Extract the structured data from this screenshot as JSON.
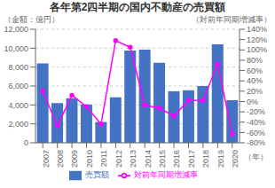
{
  "chart_data": {
    "type": "bar",
    "title": "各年第2四半期の国内不動産の売買額",
    "ylabel": "（金額：億円）",
    "y2label": "（対前年同期増減率）",
    "xlabel": "（年）",
    "categories": [
      "2007",
      "2008",
      "2009",
      "2010",
      "2011",
      "2012",
      "2013",
      "2014",
      "2015",
      "2016",
      "2017",
      "2018",
      "2019",
      "2020"
    ],
    "series": [
      {
        "name": "売買額",
        "type": "bar",
        "color": "#4472C4",
        "values": [
          8400,
          4200,
          4700,
          4050,
          2200,
          4800,
          9750,
          9850,
          8450,
          5450,
          5550,
          6000,
          10400,
          4500
        ]
      },
      {
        "name": "対前年同期増減率",
        "type": "line",
        "axis": "y2",
        "color": "#FF00FF",
        "marker": "circle",
        "values": [
          0.2,
          -0.47,
          0.12,
          -0.1,
          -0.44,
          1.18,
          1.05,
          -0.07,
          -0.13,
          -0.28,
          0.02,
          0.02,
          0.73,
          -0.63
        ]
      }
    ],
    "ylim": [
      0,
      12000
    ],
    "yticks": [
      0,
      {
        "value": 2000,
        "label": "2,000"
      },
      {
        "value": 4000,
        "label": "4,000"
      },
      {
        "value": 6000,
        "label": "6,000"
      },
      {
        "value": 8000,
        "label": "8,000"
      },
      {
        "value": 10000,
        "label": "10,000"
      },
      {
        "value": 12000,
        "label": "12,000"
      }
    ],
    "y2lim": [
      -0.8,
      1.4
    ],
    "y2ticks": [
      {
        "value": -0.8,
        "label": "-80%"
      },
      {
        "value": -0.6,
        "label": "-60%"
      },
      {
        "value": -0.4,
        "label": "-40%"
      },
      {
        "value": -0.2,
        "label": "-20%"
      },
      {
        "value": 0.0,
        "label": "0%"
      },
      {
        "value": 0.2,
        "label": "20%"
      },
      {
        "value": 0.4,
        "label": "40%"
      },
      {
        "value": 0.6,
        "label": "60%"
      },
      {
        "value": 0.8,
        "label": "80%"
      },
      {
        "value": 1.0,
        "label": "100%"
      },
      {
        "value": 1.2,
        "label": "120%"
      },
      {
        "value": 1.4,
        "label": "140%"
      }
    ],
    "grid": true,
    "legend": "bottom"
  }
}
